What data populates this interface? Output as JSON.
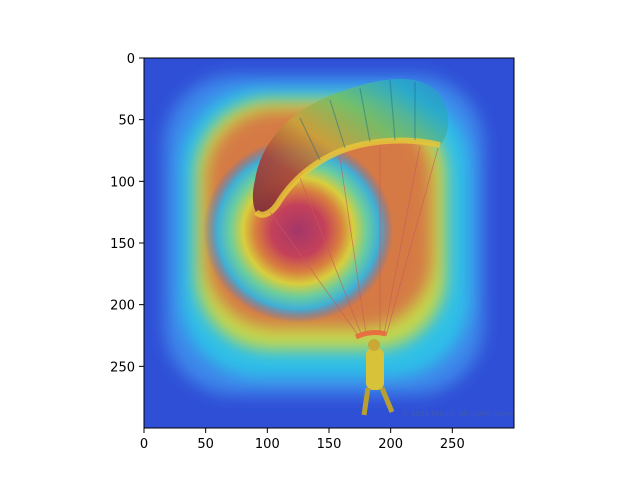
{
  "chart_data": {
    "type": "heatmap",
    "title": "",
    "xlabel": "",
    "ylabel": "",
    "image_size": [
      300,
      300
    ],
    "xlim": [
      0,
      300
    ],
    "ylim": [
      300,
      0
    ],
    "xticks": [
      0,
      50,
      100,
      150,
      200,
      250
    ],
    "yticks": [
      0,
      50,
      100,
      150,
      200,
      250
    ],
    "xtick_labels": [
      "0",
      "50",
      "100",
      "150",
      "200",
      "250"
    ],
    "ytick_labels": [
      "0",
      "50",
      "100",
      "150",
      "200",
      "250"
    ],
    "grid": false,
    "colormap": "jet",
    "overlay_subject": "paraglider-photo",
    "heat_peak": [
      125,
      140
    ],
    "watermark_text": "© 2013 Fotolia. All rights reserved."
  }
}
